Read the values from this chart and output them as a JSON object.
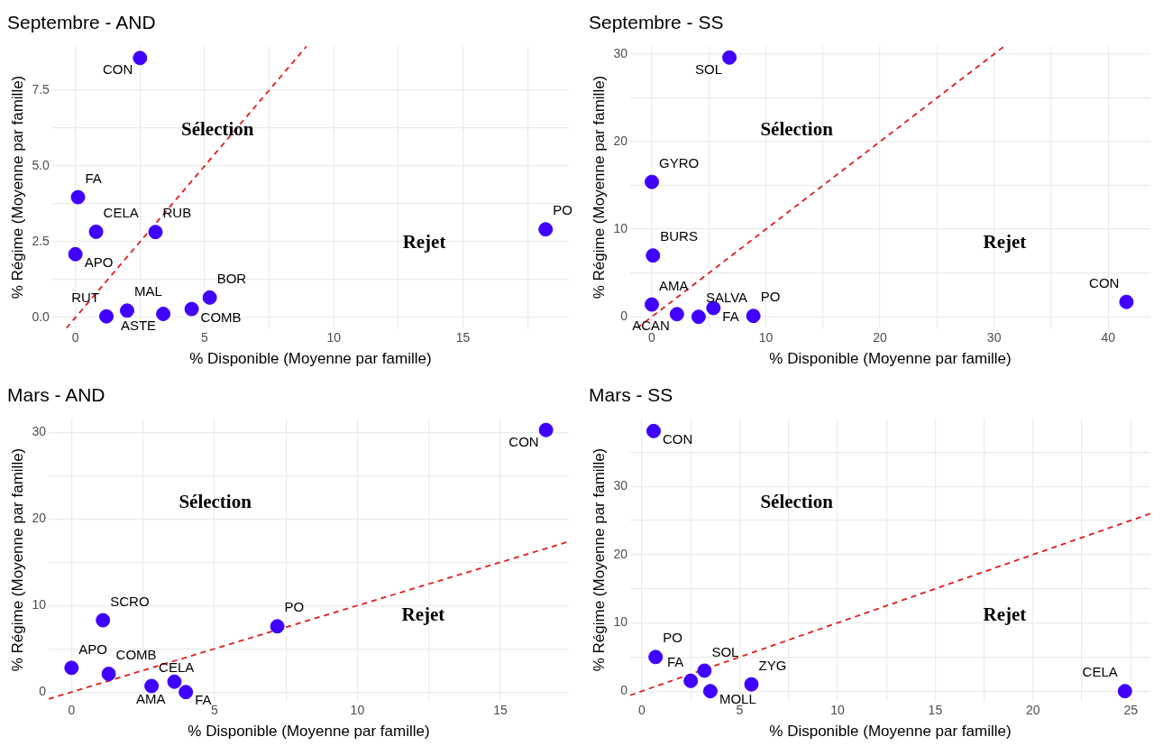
{
  "chart_data": [
    {
      "type": "scatter",
      "title": "Septembre - AND",
      "xlabel": "% Disponible (Moyenne par famille)",
      "ylabel": "% Régime (Moyenne par famille)",
      "marker": "circle",
      "legend": false,
      "grid": true,
      "xlim": [
        -0.9,
        19.1
      ],
      "ylim": [
        -0.35,
        8.95
      ],
      "xticks": [
        0,
        {
          "value": 2.5,
          "label": null
        },
        5,
        {
          "value": 7.5,
          "label": null
        },
        10,
        {
          "value": 12.5,
          "label": null
        },
        15,
        {
          "value": 17.5,
          "label": null
        }
      ],
      "yticks": [
        {
          "value": 0,
          "label": "0.0"
        },
        {
          "value": 1.25,
          "label": null
        },
        {
          "value": 2.5,
          "label": "2.5"
        },
        {
          "value": 3.75,
          "label": null
        },
        {
          "value": 5,
          "label": "5.0"
        },
        {
          "value": 6.25,
          "label": null
        },
        {
          "value": 7.5,
          "label": "7.5"
        }
      ],
      "series": [
        {
          "color": "#3f00ff",
          "x": [
            2.5,
            0.1,
            0.8,
            3.1,
            0,
            18.2,
            5.2,
            2.0,
            1.2,
            3.4,
            4.5
          ],
          "values": [
            8.56,
            3.97,
            2.83,
            2.82,
            2.09,
            2.91,
            0.66,
            0.23,
            0.04,
            0.12,
            0.28
          ],
          "value_labels": [
            "CON",
            "FA",
            "CELA",
            "RUB",
            "APO",
            "PO",
            "BOR",
            "MAL",
            "RUT",
            "ASTE",
            "COMB"
          ]
        },
        {
          "type": "line",
          "color": "#e41a1c",
          "line_style": "dashed",
          "marker": "none",
          "x": [
            -0.35,
            8.95
          ],
          "values": [
            -0.35,
            8.95
          ]
        }
      ],
      "annotations": [
        "Sélection",
        "Rejet"
      ]
    },
    {
      "type": "scatter",
      "title": "Septembre - SS",
      "xlabel": "% Disponible (Moyenne par famille)",
      "ylabel": "% Régime (Moyenne par famille)",
      "marker": "circle",
      "legend": false,
      "grid": true,
      "xlim": [
        -1.9,
        43.7
      ],
      "ylim": [
        -1.3,
        30.9
      ],
      "xticks": [
        0,
        {
          "value": 5,
          "label": null
        },
        10,
        {
          "value": 15,
          "label": null
        },
        20,
        {
          "value": 25,
          "label": null
        },
        30,
        {
          "value": 35,
          "label": null
        },
        40
      ],
      "yticks": [
        0,
        {
          "value": 5,
          "label": null
        },
        10,
        {
          "value": 15,
          "label": null
        },
        20,
        {
          "value": 25,
          "label": null
        },
        30
      ],
      "series": [
        {
          "color": "#3f00ff",
          "x": [
            6.8,
            0,
            0.1,
            0,
            2.2,
            4.1,
            5.4,
            8.9,
            41.6
          ],
          "values": [
            29.6,
            15.4,
            7.0,
            1.4,
            0.3,
            0.0,
            1.0,
            0.1,
            1.7
          ],
          "value_labels": [
            "SOL",
            "GYRO",
            "BURS",
            "AMA",
            "ACAN",
            "SALVA",
            "FA",
            "PO",
            "CON"
          ]
        },
        {
          "type": "line",
          "color": "#e41a1c",
          "line_style": "dashed",
          "marker": "none",
          "x": [
            -1.3,
            30.9
          ],
          "values": [
            -1.3,
            30.9
          ]
        }
      ],
      "annotations": [
        "Sélection",
        "Rejet"
      ]
    },
    {
      "type": "scatter",
      "title": "Mars - AND",
      "xlabel": "% Disponible (Moyenne par famille)",
      "ylabel": "% Régime (Moyenne par famille)",
      "marker": "circle",
      "legend": false,
      "grid": true,
      "xlim": [
        -0.8,
        17.4
      ],
      "ylim": [
        -1.0,
        31.6
      ],
      "xticks": [
        0,
        {
          "value": 2.5,
          "label": null
        },
        5,
        {
          "value": 7.5,
          "label": null
        },
        10,
        {
          "value": 12.5,
          "label": null
        },
        15
      ],
      "yticks": [
        0,
        {
          "value": 5,
          "label": null
        },
        10,
        {
          "value": 15,
          "label": null
        },
        20,
        {
          "value": 25,
          "label": null
        },
        30
      ],
      "series": [
        {
          "color": "#3f00ff",
          "x": [
            16.6,
            1.1,
            7.2,
            0,
            1.3,
            2.8,
            3.6,
            4.0
          ],
          "values": [
            30.3,
            8.3,
            7.6,
            2.8,
            2.1,
            0.7,
            1.2,
            0.0
          ],
          "value_labels": [
            "CON",
            "SCRO",
            "PO",
            "APO",
            "COMB",
            "CELA",
            "AMA",
            "FA"
          ]
        },
        {
          "type": "line",
          "color": "#e41a1c",
          "line_style": "dashed",
          "marker": "none",
          "x": [
            -0.8,
            17.4
          ],
          "values": [
            -0.8,
            17.4
          ]
        }
      ],
      "annotations": [
        "Sélection",
        "Rejet"
      ]
    },
    {
      "type": "scatter",
      "title": "Mars - SS",
      "xlabel": "% Disponible (Moyenne par famille)",
      "ylabel": "% Régime (Moyenne par famille)",
      "marker": "circle",
      "legend": false,
      "grid": true,
      "xlim": [
        -0.6,
        26.0
      ],
      "ylim": [
        -1.4,
        39.9
      ],
      "xticks": [
        0,
        {
          "value": 2.5,
          "label": null
        },
        5,
        {
          "value": 7.5,
          "label": null
        },
        10,
        {
          "value": 12.5,
          "label": null
        },
        15,
        {
          "value": 17.5,
          "label": null
        },
        20,
        {
          "value": 22.5,
          "label": null
        },
        25
      ],
      "yticks": [
        0,
        {
          "value": 5,
          "label": null
        },
        10,
        {
          "value": 15,
          "label": null
        },
        20,
        {
          "value": 25,
          "label": null
        },
        30,
        {
          "value": 35,
          "label": null
        }
      ],
      "series": [
        {
          "color": "#3f00ff",
          "x": [
            0.6,
            0.7,
            3.2,
            2.5,
            3.5,
            5.6,
            24.7
          ],
          "values": [
            38.1,
            5.0,
            3.0,
            1.5,
            0.0,
            1.0,
            0.0
          ],
          "value_labels": [
            "CON",
            "PO",
            "SOL",
            "FA",
            "MOLL",
            "ZYG",
            "CELA"
          ]
        },
        {
          "type": "line",
          "color": "#e41a1c",
          "line_style": "dashed",
          "marker": "none",
          "x": [
            -0.6,
            26.0
          ],
          "values": [
            -0.6,
            26.0
          ]
        }
      ],
      "annotations": [
        "Sélection",
        "Rejet"
      ]
    }
  ]
}
